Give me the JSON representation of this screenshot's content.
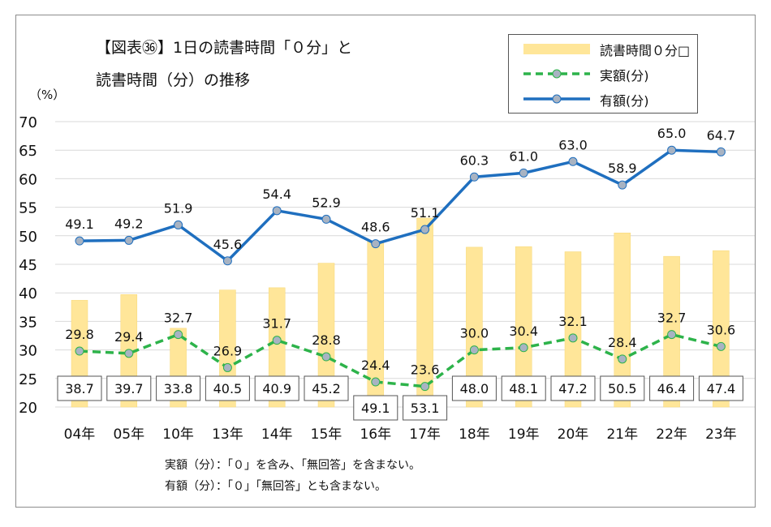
{
  "title": {
    "line1": "【図表㊱】1日の読書時間「０分」と",
    "line2": "読書時間（分）の推移"
  },
  "unit_label": "（%）",
  "notes": [
    "実額（分）：「０」を含み、「無回答」を含まない。",
    "有額（分）：「０」「無回答」とも含まない。"
  ],
  "legend": {
    "bar": "読書時間０分□",
    "jitsugaku": "実額(分)",
    "yugaku": "有額(分)"
  },
  "colors": {
    "bar_fill": "#ffe699",
    "bar_stroke": "#f7d774",
    "jitsugaku": "#2db34a",
    "yugaku": "#1f6fbf",
    "marker_fill": "#a8b3c2",
    "grid": "#d9d9d9"
  },
  "chart_data": {
    "type": "bar",
    "categories": [
      "04年",
      "05年",
      "10年",
      "13年",
      "14年",
      "15年",
      "16年",
      "17年",
      "18年",
      "19年",
      "20年",
      "21年",
      "22年",
      "23年"
    ],
    "ylim": [
      20,
      70
    ],
    "yticks": [
      20,
      25,
      30,
      35,
      40,
      45,
      50,
      55,
      60,
      65,
      70
    ],
    "grid": true,
    "legend_position": "top-right",
    "series": [
      {
        "name": "読書時間０分□",
        "type": "bar",
        "values": [
          38.7,
          39.7,
          33.8,
          40.5,
          40.9,
          45.2,
          49.1,
          53.1,
          48.0,
          48.1,
          47.2,
          50.5,
          46.4,
          47.4
        ]
      },
      {
        "name": "実額(分)",
        "type": "line",
        "style": "dashed",
        "values": [
          29.8,
          29.4,
          32.7,
          26.9,
          31.7,
          28.8,
          24.4,
          23.6,
          30.0,
          30.4,
          32.1,
          28.4,
          32.7,
          30.6
        ]
      },
      {
        "name": "有額(分)",
        "type": "line",
        "style": "solid",
        "values": [
          49.1,
          49.2,
          51.9,
          45.6,
          54.4,
          52.9,
          48.6,
          51.1,
          60.3,
          61.0,
          63.0,
          58.9,
          65.0,
          64.7
        ]
      }
    ]
  }
}
